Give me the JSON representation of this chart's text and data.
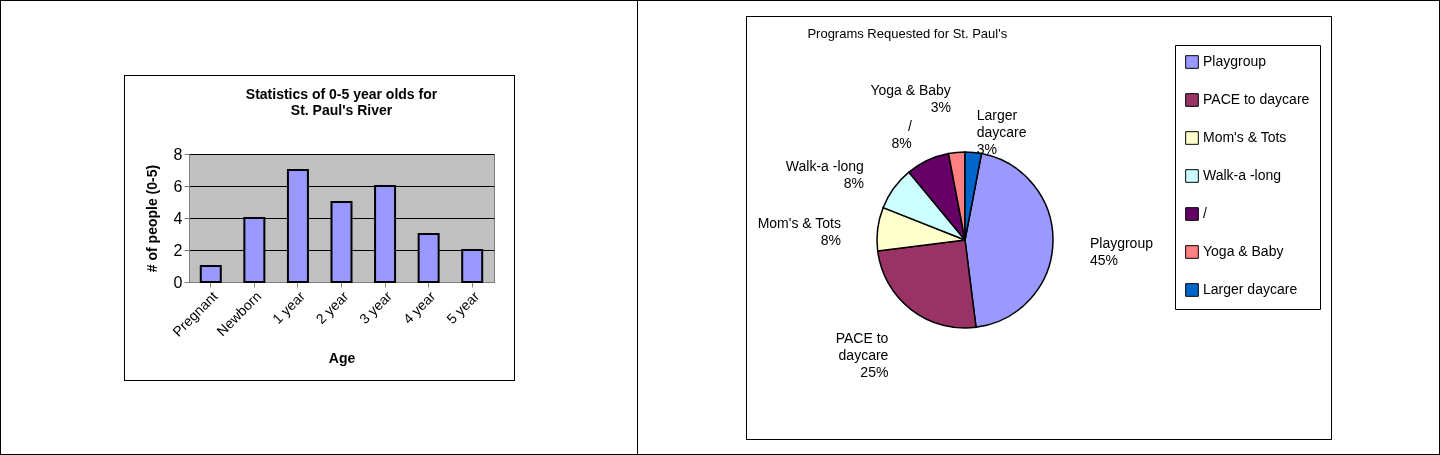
{
  "chart_data": [
    {
      "type": "bar",
      "title": "Statistics of 0-5 year olds for St. Paul's River",
      "xlabel": "Age",
      "ylabel": "# of people (0-5)",
      "categories": [
        "Pregnant",
        "Newborn",
        "1 year",
        "2 year",
        "3 year",
        "4 year",
        "5 year"
      ],
      "values": [
        1,
        4,
        7,
        5,
        6,
        3,
        2
      ],
      "color": "#9999ff",
      "ylim": [
        0,
        8
      ],
      "yticks": [
        0,
        2,
        4,
        6,
        8
      ],
      "grid": "y"
    },
    {
      "type": "pie",
      "title": "Programs Requested for St. Paul's",
      "categories": [
        "Playgroup",
        "PACE to daycare",
        "Mom's & Tots",
        "Walk-a -long",
        "/",
        "Yoga & Baby",
        "Larger daycare"
      ],
      "values": [
        45,
        25,
        8,
        8,
        8,
        3,
        3
      ],
      "colors": [
        "#9999ff",
        "#993366",
        "#ffffcc",
        "#ccffff",
        "#660066",
        "#ff8080",
        "#0066cc"
      ],
      "value_labels": [
        "45%",
        "25%",
        "8%",
        "8%",
        "8%",
        "3%",
        "3%"
      ],
      "legend": "right"
    }
  ]
}
